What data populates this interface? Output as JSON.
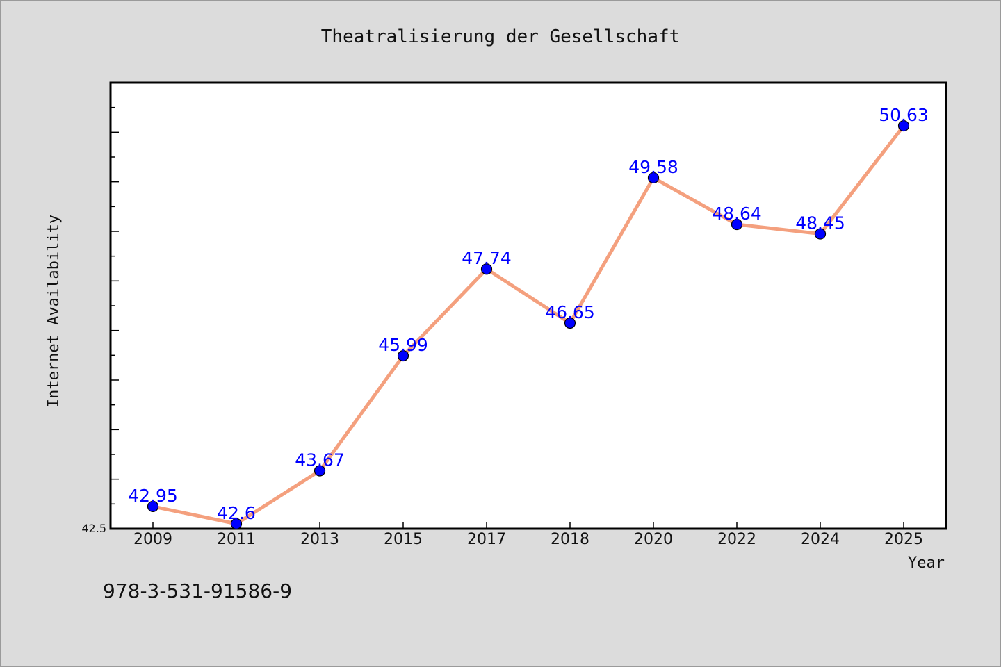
{
  "chart_data": {
    "type": "line",
    "title": "Theatralisierung der Gesellschaft",
    "xlabel": "Year",
    "ylabel": "Internet Availability",
    "categories": [
      "2009",
      "2011",
      "2013",
      "2015",
      "2017",
      "2018",
      "2020",
      "2022",
      "2024",
      "2025"
    ],
    "series": [
      {
        "values": [
          42.95,
          42.6,
          43.67,
          45.99,
          47.74,
          46.65,
          49.58,
          48.64,
          48.45,
          50.63
        ],
        "labels": [
          "42.95",
          "42.6",
          "43.67",
          "45.99",
          "47.74",
          "46.65",
          "49.58",
          "48.64",
          "48.45",
          "50.63"
        ]
      }
    ],
    "ylim": [
      42.5,
      51.5
    ],
    "y_tick_labels": [
      "42.5"
    ],
    "grid": false,
    "legend": "none",
    "line_color": "#f4a07e",
    "marker_color": "#0000ff",
    "label_color": "#0000ff"
  },
  "footer": {
    "isbn": "978-3-531-91586-9"
  }
}
